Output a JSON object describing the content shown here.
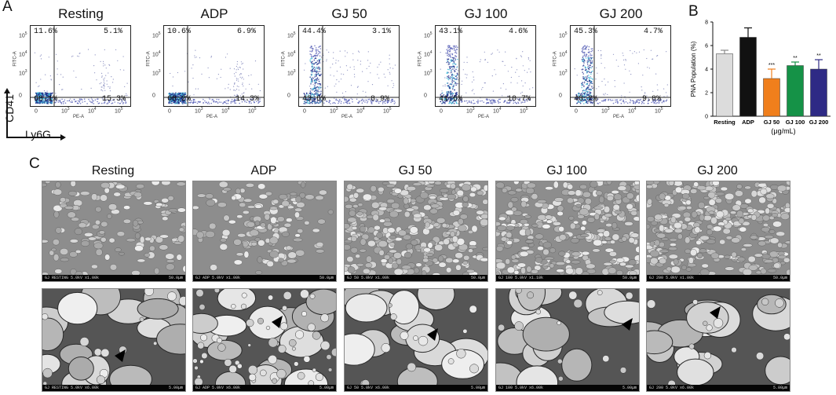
{
  "panel_a": {
    "letter": "A",
    "y_axis_label": "CD41",
    "x_axis_label": "Ly6G",
    "plot_y_label": "FITC-A",
    "plot_x_label": "PE-A",
    "x_ticks": [
      "0",
      "10",
      "10",
      "10"
    ],
    "x_tick_exps": [
      "",
      "3",
      "4",
      "5"
    ],
    "y_ticks": [
      "10",
      "10",
      "10",
      "0"
    ],
    "y_tick_exps": [
      "5",
      "4",
      "3",
      ""
    ],
    "plots": [
      {
        "title": "Resting",
        "ul": "11.6%",
        "ur": "5.1%",
        "ll": "68.1%",
        "lr": "15.3%"
      },
      {
        "title": "ADP",
        "ul": "10.6%",
        "ur": "6.9%",
        "ll": "68.2%",
        "lr": "14.3%"
      },
      {
        "title": "GJ 50",
        "ul": "44.4%",
        "ur": "3.1%",
        "ll": "43.6%",
        "lr": "8.9%"
      },
      {
        "title": "GJ 100",
        "ul": "43.1%",
        "ur": "4.6%",
        "ll": "41.6%",
        "lr": "10.7%"
      },
      {
        "title": "GJ 200",
        "ul": "45.3%",
        "ur": "4.7%",
        "ll": "40.2%",
        "lr": "9.8%"
      }
    ]
  },
  "panel_b": {
    "letter": "B",
    "chart_data": {
      "type": "bar",
      "categories": [
        "Resting",
        "ADP",
        "GJ 50",
        "GJ 100",
        "GJ 200"
      ],
      "values": [
        5.3,
        6.7,
        3.2,
        4.3,
        4.0
      ],
      "errors": [
        0.3,
        0.8,
        0.8,
        0.3,
        0.8
      ],
      "significance": [
        "",
        "",
        "***",
        "**",
        "**"
      ],
      "colors": [
        "#dcdcdc",
        "#111111",
        "#f07f1c",
        "#159247",
        "#2e2a85"
      ],
      "ylabel": "PNA Population (%)",
      "xlabel": "(μg/mL)",
      "ylim": [
        0,
        8
      ],
      "yticks": [
        "0",
        "2",
        "4",
        "6",
        "8"
      ]
    }
  },
  "panel_c": {
    "letter": "C",
    "columns": [
      {
        "title": "Resting",
        "top_caption": "GJ RESTING 5.0kV x1.00k",
        "top_scale": "50.0μm",
        "bottom_caption": "GJ RESTING 5.0kV x6.00k",
        "bottom_scale": "5.00μm"
      },
      {
        "title": "ADP",
        "top_caption": "GJ ADP 5.0kV x1.00k",
        "top_scale": "50.0μm",
        "bottom_caption": "GJ ADP 5.0kV x6.00k",
        "bottom_scale": "5.00μm"
      },
      {
        "title": "GJ 50",
        "top_caption": "GJ 50 5.0kV x1.00k",
        "top_scale": "50.0μm",
        "bottom_caption": "GJ 50 5.0kV x6.00k",
        "bottom_scale": "5.00μm"
      },
      {
        "title": "GJ 100",
        "top_caption": "GJ 100 5.0kV x1.10k",
        "top_scale": "50.0μm",
        "bottom_caption": "GJ 100 5.0kV x6.00k",
        "bottom_scale": "5.00μm"
      },
      {
        "title": "GJ 200",
        "top_caption": "GJ 200 5.0kV x1.00k",
        "top_scale": "50.0μm",
        "bottom_caption": "GJ 200 5.0kV x6.00k",
        "bottom_scale": "5.00μm"
      }
    ]
  }
}
